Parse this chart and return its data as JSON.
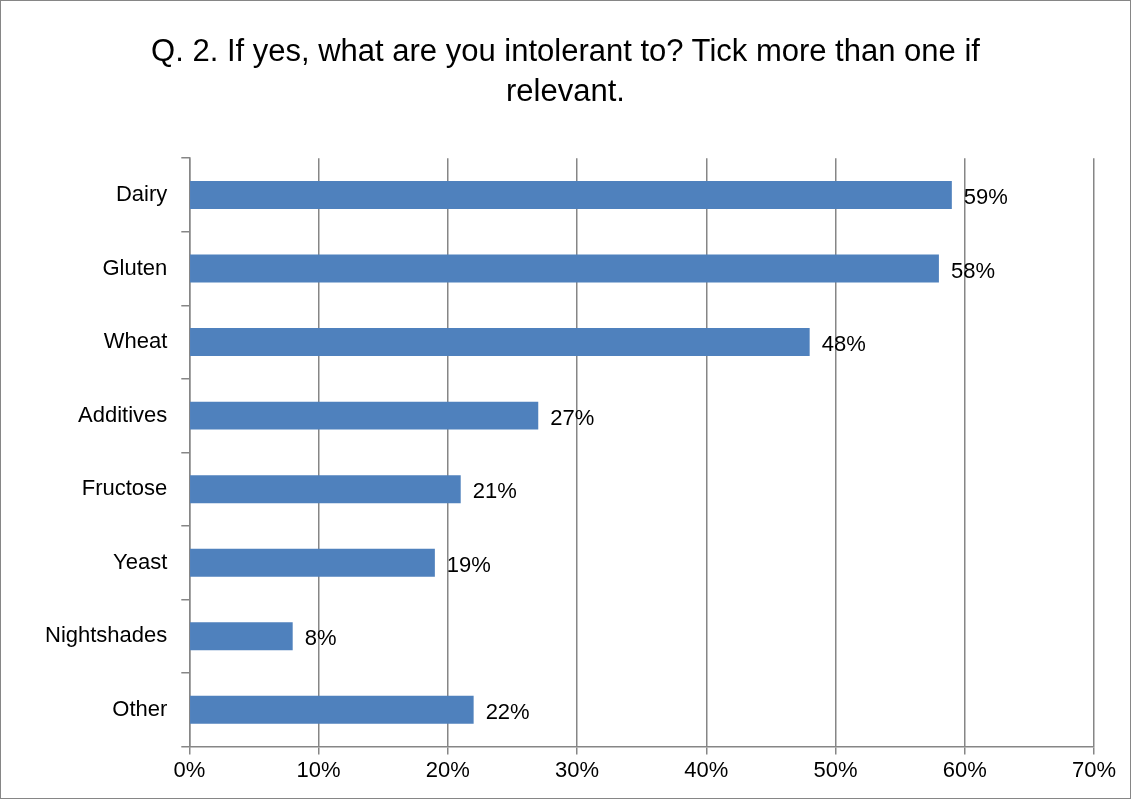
{
  "chart_data": {
    "type": "bar",
    "orientation": "horizontal",
    "title": "Q. 2. If yes, what are you intolerant to? Tick more than one if relevant.",
    "categories": [
      "Dairy",
      "Gluten",
      "Wheat",
      "Additives",
      "Fructose",
      "Yeast",
      "Nightshades",
      "Other"
    ],
    "values": [
      59,
      58,
      48,
      27,
      21,
      19,
      8,
      22
    ],
    "value_labels": [
      "59%",
      "58%",
      "48%",
      "27%",
      "21%",
      "19%",
      "8%",
      "22%"
    ],
    "color": "#4f81bd",
    "xlim": [
      0,
      70
    ],
    "xticks": [
      {
        "value": 0,
        "label": "0%"
      },
      {
        "value": 10,
        "label": "10%"
      },
      {
        "value": 20,
        "label": "20%"
      },
      {
        "value": 30,
        "label": "30%"
      },
      {
        "value": 40,
        "label": "40%"
      },
      {
        "value": 50,
        "label": "50%"
      },
      {
        "value": 60,
        "label": "60%"
      },
      {
        "value": 70,
        "label": "70%"
      }
    ],
    "grid": "x",
    "legend": false
  }
}
